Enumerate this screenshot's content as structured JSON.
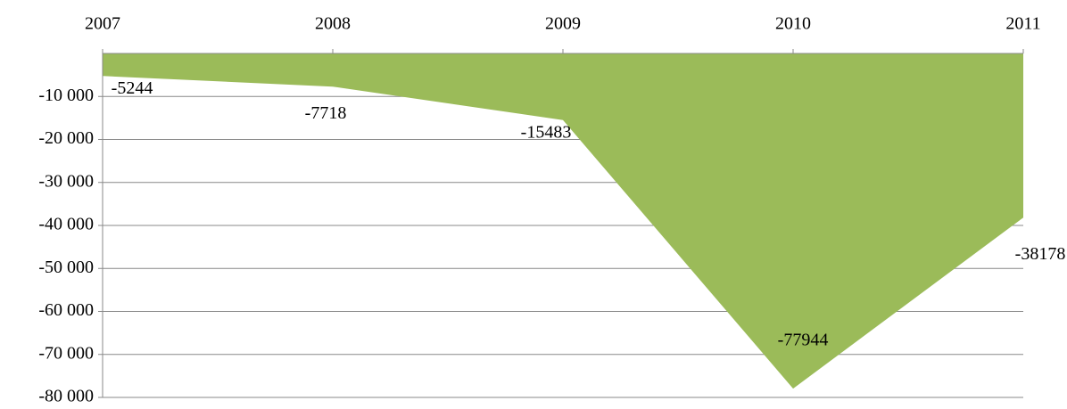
{
  "chart_data": {
    "type": "area",
    "categories": [
      "2007",
      "2008",
      "2009",
      "2010",
      "2011"
    ],
    "values": [
      -5244,
      -7718,
      -15483,
      -77944,
      -38178
    ],
    "color": "#9bbb59",
    "ylim": [
      -80000,
      0
    ],
    "yticks": [
      {
        "value": -10000,
        "label": "-10 000"
      },
      {
        "value": -20000,
        "label": "-20 000"
      },
      {
        "value": -30000,
        "label": "-30 000"
      },
      {
        "value": -40000,
        "label": "-40 000"
      },
      {
        "value": -50000,
        "label": "-50 000"
      },
      {
        "value": -60000,
        "label": "-60 000"
      },
      {
        "value": -70000,
        "label": "-70 000"
      },
      {
        "value": -80000,
        "label": "-80 000"
      }
    ],
    "grid": true
  }
}
